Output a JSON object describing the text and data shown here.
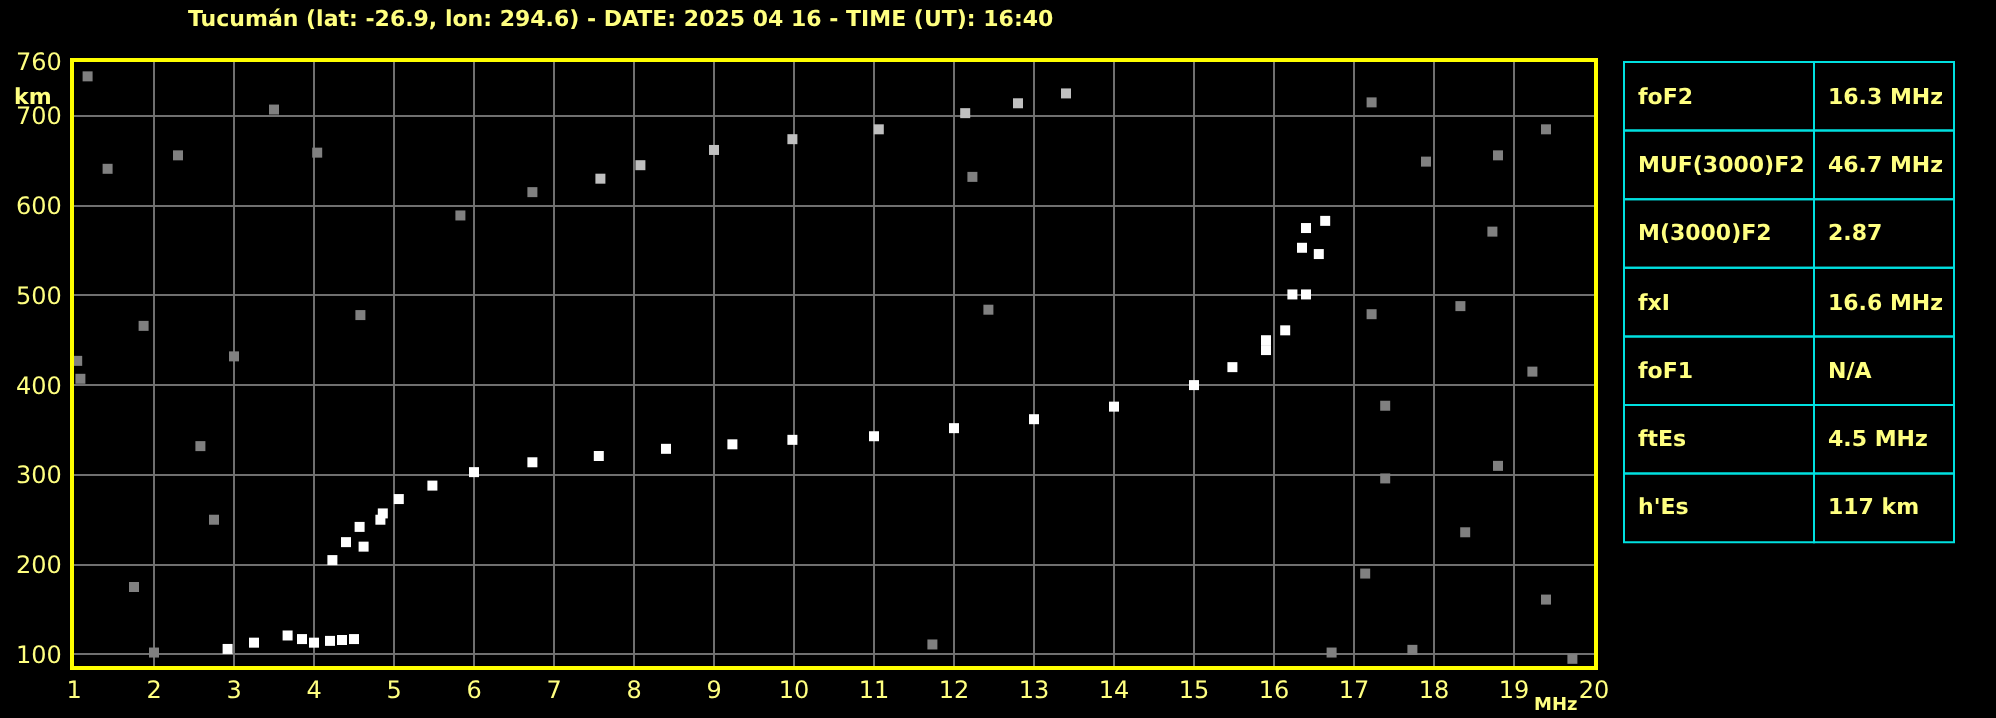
{
  "chart_data": [
    {
      "type": "scatter",
      "title": "Tucumán (lat: -26.9, lon: 294.6) - DATE: 2025 04 16 - TIME (UT): 16:40",
      "xlabel": "MHz",
      "ylabel": "km",
      "xlim": [
        1,
        20
      ],
      "ylim": [
        87,
        760
      ],
      "xticks": [
        1,
        2,
        3,
        4,
        5,
        6,
        7,
        8,
        9,
        10,
        11,
        12,
        13,
        14,
        15,
        16,
        17,
        18,
        19,
        20
      ],
      "yticks": [
        100,
        200,
        300,
        400,
        500,
        600,
        700,
        760
      ],
      "grid": true,
      "marker": "square",
      "series": [
        {
          "color": "#808080",
          "x": [
            1.17,
            1.42,
            1.08,
            1.87,
            2.58,
            2.75,
            3.0,
            2.3,
            3.5,
            1.75,
            2.0,
            6.73,
            5.83,
            4.58,
            4.04,
            1.04,
            17.22,
            17.9,
            18.8,
            19.4,
            17.22,
            18.33,
            19.23,
            17.39,
            18.8,
            17.39,
            18.39,
            17.14,
            19.4,
            16.72,
            17.73,
            19.73,
            18.73,
            12.23,
            12.43,
            11.73
          ],
          "values": [
            744,
            641,
            407,
            466,
            332,
            250,
            432,
            656,
            707,
            175,
            102,
            615,
            589,
            478,
            659,
            427,
            715,
            649,
            656,
            685,
            479,
            488,
            415,
            377,
            310,
            296,
            236,
            190,
            161,
            102,
            105,
            95,
            571,
            632,
            484,
            111
          ]
        },
        {
          "color": "#ffffff",
          "x": [
            2.92,
            3.25,
            3.67,
            3.85,
            4.0,
            4.2,
            4.35,
            4.5
          ],
          "values": [
            106,
            113,
            121,
            117,
            113,
            115,
            116,
            117
          ]
        },
        {
          "color": "#ffffff",
          "x": [
            4.23,
            4.4,
            4.57,
            4.86,
            5.06,
            5.48,
            6.0,
            6.73,
            7.56,
            8.4,
            9.23,
            9.98,
            11,
            12,
            13,
            14,
            15,
            15.48,
            15.9,
            16.23,
            16.35,
            16.4
          ],
          "values": [
            205,
            225,
            242,
            257,
            273,
            288,
            303,
            314,
            321,
            329,
            334,
            339,
            343,
            352,
            362,
            376,
            400,
            420,
            450,
            501,
            553,
            575
          ]
        },
        {
          "color": "#ffffff",
          "x": [
            4.62,
            4.83,
            15.9,
            16.14,
            16.4,
            16.56,
            16.64
          ],
          "values": [
            220,
            250,
            439,
            461,
            501,
            546,
            583
          ]
        },
        {
          "color": "#c0c0c0",
          "x": [
            7.58,
            8.08,
            9.0,
            9.98,
            11.06,
            12.14,
            12.8,
            13.4
          ],
          "values": [
            630,
            645,
            662,
            674,
            685,
            703,
            714,
            725
          ]
        }
      ]
    },
    {
      "type": "other",
      "annotations": [
        "foF2",
        "16.3 MHz",
        "MUF(3000)F2",
        "46.7 MHz",
        "M(3000)F2",
        "2.87",
        "fxI",
        "16.6 MHz",
        "foF1",
        "N/A",
        "ftEs",
        "4.5 MHz",
        "h'Es",
        "117 km"
      ]
    }
  ]
}
